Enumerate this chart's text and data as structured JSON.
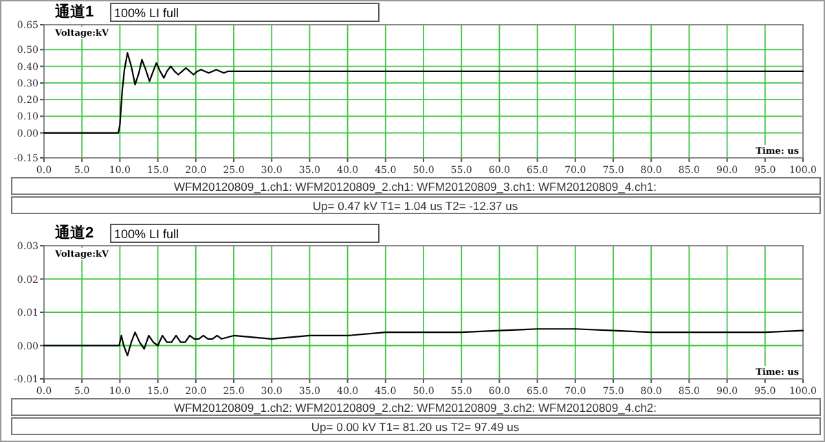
{
  "chart_data": [
    {
      "type": "line",
      "title": "通道1",
      "subtitle": "100% LI full",
      "ylabel": "Voltage:kV",
      "xlabel": "Time: us",
      "grid": true,
      "annotations": [
        "WFM20120809_1.ch1: WFM20120809_2.ch1: WFM20120809_3.ch1: WFM20120809_4.ch1:",
        "Up= 0.47 kV  T1= 1.04 us  T2= -12.37 us"
      ],
      "xlim": [
        0,
        100
      ],
      "ylim": [
        -0.15,
        0.65
      ],
      "xticks": [
        {
          "value": 0,
          "label": "0.0"
        },
        {
          "value": 5,
          "label": "5.0"
        },
        {
          "value": 10,
          "label": "10.0"
        },
        {
          "value": 15,
          "label": "15.0"
        },
        {
          "value": 20,
          "label": "20.0"
        },
        {
          "value": 25,
          "label": "25.0"
        },
        {
          "value": 30,
          "label": "30.0"
        },
        {
          "value": 35,
          "label": "35.0"
        },
        {
          "value": 40,
          "label": "40.0"
        },
        {
          "value": 45,
          "label": "45.0"
        },
        {
          "value": 50,
          "label": "50.0"
        },
        {
          "value": 55,
          "label": "55.0"
        },
        {
          "value": 60,
          "label": "60.0"
        },
        {
          "value": 65,
          "label": "65.0"
        },
        {
          "value": 70,
          "label": "70.0"
        },
        {
          "value": 75,
          "label": "75.0"
        },
        {
          "value": 80,
          "label": "80.0"
        },
        {
          "value": 85,
          "label": "85.0"
        },
        {
          "value": 90,
          "label": "90.0"
        },
        {
          "value": 95,
          "label": "95.0"
        },
        {
          "value": 100,
          "label": "100.0"
        }
      ],
      "yticks": [
        {
          "value": -0.15,
          "label": "-0.15"
        },
        {
          "value": 0,
          "label": "0.00"
        },
        {
          "value": 0.1,
          "label": "0.10"
        },
        {
          "value": 0.2,
          "label": "0.20"
        },
        {
          "value": 0.3,
          "label": "0.30"
        },
        {
          "value": 0.4,
          "label": "0.40"
        },
        {
          "value": 0.5,
          "label": "0.50"
        },
        {
          "value": 0.65,
          "label": "0.65"
        }
      ],
      "series": [
        {
          "color": "#000000",
          "x": [
            0,
            5,
            9.8,
            10.0,
            10.3,
            10.6,
            11.0,
            11.5,
            12.0,
            12.5,
            12.9,
            13.4,
            13.9,
            14.3,
            14.8,
            15.3,
            15.8,
            16.2,
            16.7,
            17.2,
            17.7,
            18.2,
            18.7,
            19.2,
            19.7,
            20.2,
            20.7,
            21.2,
            21.7,
            22.2,
            22.7,
            23.2,
            23.7,
            24.2,
            25,
            30,
            40,
            50,
            60,
            70,
            80,
            90,
            100
          ],
          "values": [
            0,
            0,
            0,
            0.05,
            0.25,
            0.38,
            0.48,
            0.4,
            0.29,
            0.36,
            0.44,
            0.38,
            0.31,
            0.36,
            0.42,
            0.37,
            0.33,
            0.37,
            0.4,
            0.37,
            0.35,
            0.37,
            0.39,
            0.37,
            0.35,
            0.37,
            0.38,
            0.37,
            0.36,
            0.37,
            0.38,
            0.37,
            0.36,
            0.37,
            0.37,
            0.37,
            0.37,
            0.37,
            0.37,
            0.37,
            0.37,
            0.37,
            0.37
          ]
        }
      ]
    },
    {
      "type": "line",
      "title": "通道2",
      "subtitle": "100% LI full",
      "ylabel": "Voltage:kV",
      "xlabel": "Time: us",
      "grid": true,
      "annotations": [
        "WFM20120809_1.ch2: WFM20120809_2.ch2: WFM20120809_3.ch2: WFM20120809_4.ch2:",
        "Up= 0.00 kV  T1= 81.20 us  T2= 97.49 us"
      ],
      "xlim": [
        0,
        100
      ],
      "ylim": [
        -0.01,
        0.03
      ],
      "xticks": [
        {
          "value": 0,
          "label": "0.0"
        },
        {
          "value": 5,
          "label": "5.0"
        },
        {
          "value": 10,
          "label": "10.0"
        },
        {
          "value": 15,
          "label": "15.0"
        },
        {
          "value": 20,
          "label": "20.0"
        },
        {
          "value": 25,
          "label": "25.0"
        },
        {
          "value": 30,
          "label": "30.0"
        },
        {
          "value": 35,
          "label": "35.0"
        },
        {
          "value": 40,
          "label": "40.0"
        },
        {
          "value": 45,
          "label": "45.0"
        },
        {
          "value": 50,
          "label": "50.0"
        },
        {
          "value": 55,
          "label": "55.0"
        },
        {
          "value": 60,
          "label": "60.0"
        },
        {
          "value": 65,
          "label": "65.0"
        },
        {
          "value": 70,
          "label": "70.0"
        },
        {
          "value": 75,
          "label": "75.0"
        },
        {
          "value": 80,
          "label": "80.0"
        },
        {
          "value": 85,
          "label": "85.0"
        },
        {
          "value": 90,
          "label": "90.0"
        },
        {
          "value": 95,
          "label": "95.0"
        },
        {
          "value": 100,
          "label": "100.0"
        }
      ],
      "yticks": [
        {
          "value": -0.01,
          "label": "-0.01"
        },
        {
          "value": 0,
          "label": "0.00"
        },
        {
          "value": 0.01,
          "label": "0.01"
        },
        {
          "value": 0.02,
          "label": "0.02"
        },
        {
          "value": 0.03,
          "label": "0.03"
        }
      ],
      "series": [
        {
          "color": "#000000",
          "x": [
            0,
            5,
            9.9,
            10.2,
            10.5,
            11.0,
            11.5,
            12.0,
            12.6,
            13.2,
            13.8,
            14.4,
            15.0,
            15.6,
            16.2,
            16.8,
            17.4,
            18.0,
            18.6,
            19.2,
            19.8,
            20.4,
            21.0,
            21.6,
            22.2,
            22.8,
            23.4,
            25,
            30,
            35,
            40,
            45,
            50,
            55,
            60,
            65,
            70,
            75,
            80,
            85,
            90,
            95,
            100
          ],
          "values": [
            0,
            0,
            0,
            0.003,
            0.0,
            -0.003,
            0.001,
            0.004,
            0.001,
            -0.001,
            0.003,
            0.001,
            0.0,
            0.003,
            0.001,
            0.001,
            0.003,
            0.001,
            0.001,
            0.003,
            0.002,
            0.002,
            0.003,
            0.002,
            0.002,
            0.003,
            0.002,
            0.003,
            0.002,
            0.003,
            0.003,
            0.004,
            0.004,
            0.004,
            0.0045,
            0.005,
            0.005,
            0.0045,
            0.004,
            0.004,
            0.004,
            0.004,
            0.0045
          ]
        }
      ]
    }
  ]
}
